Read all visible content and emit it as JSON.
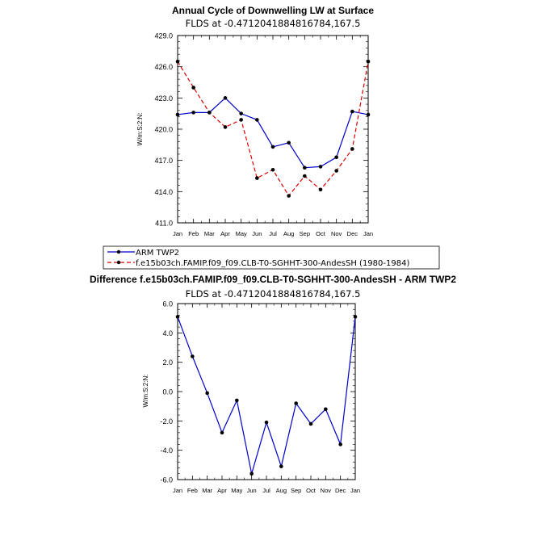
{
  "chart_data": [
    {
      "type": "line",
      "title": "Annual Cycle of Downwelling LW at Surface",
      "subtitle": "FLDS at -0.4712041884816784,167.5",
      "ylabel": "W/m:S:2:N:",
      "categories": [
        "Jan",
        "Feb",
        "Mar",
        "Apr",
        "May",
        "Jun",
        "Jul",
        "Aug",
        "Sep",
        "Oct",
        "Nov",
        "Dec",
        "Jan"
      ],
      "ylim": [
        411,
        429
      ],
      "yticks": [
        "411.0",
        "414.0",
        "417.0",
        "420.0",
        "423.0",
        "426.0",
        "429.0"
      ],
      "series": [
        {
          "name": "ARM TWP2",
          "color": "#0000cc",
          "dash": "solid",
          "values": [
            421.4,
            421.6,
            421.6,
            423.0,
            421.5,
            420.9,
            418.3,
            418.7,
            416.3,
            416.4,
            417.3,
            421.7,
            421.4
          ]
        },
        {
          "name": "f.e15b03ch.FAMIP.f09_f09.CLB-T0-SGHHT-300-AndesSH (1980-1984)",
          "color": "#dd0000",
          "dash": "dashed",
          "values": [
            426.5,
            424.0,
            421.6,
            420.2,
            420.9,
            415.3,
            416.1,
            413.6,
            415.5,
            414.2,
            416.0,
            418.1,
            426.5
          ]
        }
      ]
    },
    {
      "type": "line",
      "title": "Difference f.e15b03ch.FAMIP.f09_f09.CLB-T0-SGHHT-300-AndesSH - ARM TWP2",
      "subtitle": "FLDS at -0.4712041884816784,167.5",
      "ylabel": "W/m:S:2:N:",
      "categories": [
        "Jan",
        "Feb",
        "Mar",
        "Apr",
        "May",
        "Jun",
        "Jul",
        "Aug",
        "Sep",
        "Oct",
        "Nov",
        "Dec",
        "Jan"
      ],
      "ylim": [
        -6,
        6
      ],
      "yticks": [
        "-6.0",
        "-4.0",
        "-2.0",
        "0.0",
        "2.0",
        "4.0",
        "6.0"
      ],
      "series": [
        {
          "name": "",
          "color": "#0000cc",
          "dash": "solid",
          "values": [
            5.1,
            2.4,
            -0.1,
            -2.8,
            -0.6,
            -5.6,
            -2.1,
            -5.1,
            -0.8,
            -2.2,
            -1.2,
            -3.6,
            5.1
          ]
        }
      ]
    }
  ]
}
